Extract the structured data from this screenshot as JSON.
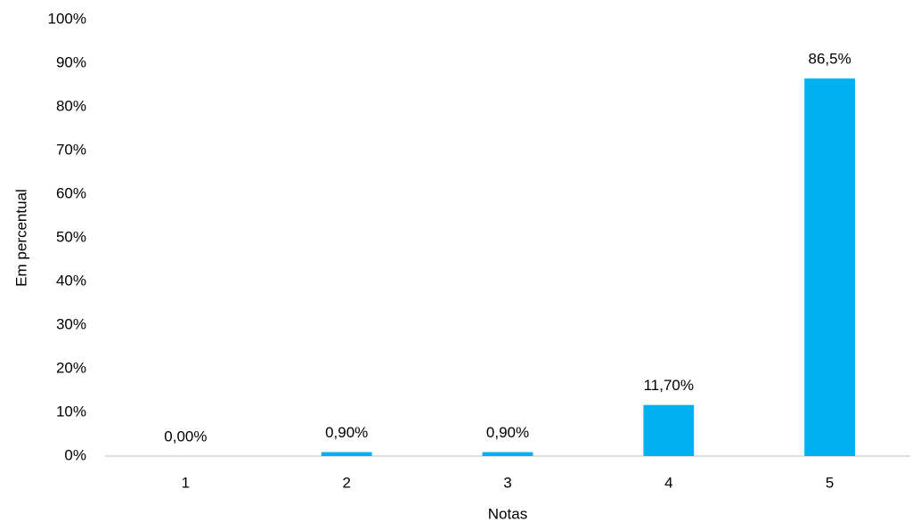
{
  "chart_data": {
    "type": "bar",
    "x_label": "Notas",
    "y_label": "Em percentual",
    "categories": [
      "1",
      "2",
      "3",
      "4",
      "5"
    ],
    "values": [
      0,
      0.9,
      0.9,
      11.7,
      86.5
    ],
    "value_labels": [
      "0,00%",
      "0,90%",
      "0,90%",
      "11,70%",
      "86,5%"
    ],
    "color": "#00b0f0",
    "ylim": [
      0,
      100
    ],
    "yticks": [
      {
        "value": 0,
        "label": "0%"
      },
      {
        "value": 10,
        "label": "10%"
      },
      {
        "value": 20,
        "label": "20%"
      },
      {
        "value": 30,
        "label": "30%"
      },
      {
        "value": 40,
        "label": "40%"
      },
      {
        "value": 50,
        "label": "50%"
      },
      {
        "value": 60,
        "label": "60%"
      },
      {
        "value": 70,
        "label": "70%"
      },
      {
        "value": 80,
        "label": "80%"
      },
      {
        "value": 90,
        "label": "90%"
      },
      {
        "value": 100,
        "label": "100%"
      }
    ],
    "grid": false
  }
}
